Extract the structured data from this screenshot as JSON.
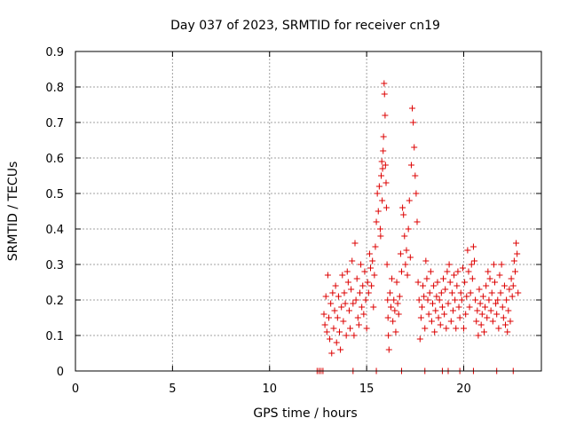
{
  "chart_data": {
    "type": "scatter",
    "title": "Day 037 of 2023, SRMTID for receiver cn19",
    "xlabel": "GPS time / hours",
    "ylabel": "SRMTID / TECUs",
    "xlim": [
      0,
      24
    ],
    "ylim": [
      0,
      0.9
    ],
    "grid": true,
    "x_ticks": [
      0,
      5,
      10,
      15,
      20
    ],
    "x_tick_labels": [
      "0",
      "5",
      "10",
      "15",
      "20"
    ],
    "y_ticks": [
      0,
      0.1,
      0.2,
      0.3,
      0.4,
      0.5,
      0.6,
      0.7,
      0.8,
      0.9
    ],
    "y_tick_labels": [
      "0",
      "0.1",
      "0.2",
      "0.3",
      "0.4",
      "0.5",
      "0.6",
      "0.7",
      "0.8",
      "0.9"
    ],
    "marker": "+",
    "color": "#dd0000",
    "series": [
      {
        "name": "SRMTID",
        "points": [
          [
            12.45,
            0
          ],
          [
            12.55,
            0
          ],
          [
            12.65,
            0
          ],
          [
            12.75,
            0
          ],
          [
            14.3,
            0
          ],
          [
            15.5,
            0
          ],
          [
            16.8,
            0
          ],
          [
            18.0,
            0
          ],
          [
            18.9,
            0
          ],
          [
            19.2,
            0
          ],
          [
            19.8,
            0
          ],
          [
            20.5,
            0
          ],
          [
            21.7,
            0
          ],
          [
            22.55,
            0
          ],
          [
            12.8,
            0.16
          ],
          [
            12.85,
            0.13
          ],
          [
            12.9,
            0.21
          ],
          [
            12.95,
            0.11
          ],
          [
            13.0,
            0.27
          ],
          [
            13.05,
            0.15
          ],
          [
            13.1,
            0.09
          ],
          [
            13.15,
            0.19
          ],
          [
            13.2,
            0.05
          ],
          [
            13.25,
            0.22
          ],
          [
            13.3,
            0.12
          ],
          [
            13.35,
            0.17
          ],
          [
            13.4,
            0.24
          ],
          [
            13.45,
            0.08
          ],
          [
            13.5,
            0.15
          ],
          [
            13.55,
            0.21
          ],
          [
            13.6,
            0.11
          ],
          [
            13.65,
            0.06
          ],
          [
            13.7,
            0.18
          ],
          [
            13.75,
            0.27
          ],
          [
            13.8,
            0.14
          ],
          [
            13.85,
            0.22
          ],
          [
            13.9,
            0.19
          ],
          [
            13.95,
            0.1
          ],
          [
            14.0,
            0.28
          ],
          [
            14.05,
            0.25
          ],
          [
            14.1,
            0.17
          ],
          [
            14.15,
            0.12
          ],
          [
            14.2,
            0.23
          ],
          [
            14.25,
            0.31
          ],
          [
            14.3,
            0.19
          ],
          [
            14.35,
            0.1
          ],
          [
            14.4,
            0.36
          ],
          [
            14.45,
            0.2
          ],
          [
            14.5,
            0.26
          ],
          [
            14.55,
            0.15
          ],
          [
            14.6,
            0.13
          ],
          [
            14.65,
            0.22
          ],
          [
            14.7,
            0.3
          ],
          [
            14.75,
            0.18
          ],
          [
            14.8,
            0.24
          ],
          [
            14.85,
            0.16
          ],
          [
            14.9,
            0.28
          ],
          [
            14.95,
            0.2
          ],
          [
            15.0,
            0.12
          ],
          [
            15.05,
            0.25
          ],
          [
            15.1,
            0.22
          ],
          [
            15.15,
            0.33
          ],
          [
            15.2,
            0.29
          ],
          [
            15.25,
            0.24
          ],
          [
            15.3,
            0.31
          ],
          [
            15.35,
            0.18
          ],
          [
            15.4,
            0.27
          ],
          [
            15.45,
            0.35
          ],
          [
            15.5,
            0.42
          ],
          [
            15.55,
            0.5
          ],
          [
            15.6,
            0.45
          ],
          [
            15.65,
            0.52
          ],
          [
            15.7,
            0.4
          ],
          [
            15.72,
            0.38
          ],
          [
            15.75,
            0.55
          ],
          [
            15.78,
            0.59
          ],
          [
            15.8,
            0.48
          ],
          [
            15.82,
            0.57
          ],
          [
            15.85,
            0.62
          ],
          [
            15.87,
            0.66
          ],
          [
            15.9,
            0.81
          ],
          [
            15.92,
            0.78
          ],
          [
            15.95,
            0.72
          ],
          [
            15.97,
            0.58
          ],
          [
            16.0,
            0.53
          ],
          [
            16.02,
            0.46
          ],
          [
            16.05,
            0.3
          ],
          [
            16.08,
            0.2
          ],
          [
            16.1,
            0.15
          ],
          [
            16.12,
            0.1
          ],
          [
            16.15,
            0.06
          ],
          [
            16.2,
            0.22
          ],
          [
            16.25,
            0.18
          ],
          [
            16.3,
            0.26
          ],
          [
            16.35,
            0.14
          ],
          [
            16.4,
            0.2
          ],
          [
            16.45,
            0.17
          ],
          [
            16.5,
            0.11
          ],
          [
            16.55,
            0.25
          ],
          [
            16.6,
            0.19
          ],
          [
            16.65,
            0.16
          ],
          [
            16.7,
            0.21
          ],
          [
            16.75,
            0.33
          ],
          [
            16.8,
            0.28
          ],
          [
            16.85,
            0.46
          ],
          [
            16.9,
            0.44
          ],
          [
            16.95,
            0.38
          ],
          [
            17.0,
            0.3
          ],
          [
            17.05,
            0.34
          ],
          [
            17.1,
            0.27
          ],
          [
            17.15,
            0.4
          ],
          [
            17.2,
            0.48
          ],
          [
            17.25,
            0.32
          ],
          [
            17.3,
            0.58
          ],
          [
            17.35,
            0.74
          ],
          [
            17.4,
            0.7
          ],
          [
            17.45,
            0.63
          ],
          [
            17.5,
            0.55
          ],
          [
            17.55,
            0.5
          ],
          [
            17.6,
            0.42
          ],
          [
            17.65,
            0.25
          ],
          [
            17.7,
            0.2
          ],
          [
            17.75,
            0.09
          ],
          [
            17.8,
            0.15
          ],
          [
            17.85,
            0.18
          ],
          [
            17.9,
            0.24
          ],
          [
            17.95,
            0.21
          ],
          [
            18.0,
            0.12
          ],
          [
            18.05,
            0.31
          ],
          [
            18.1,
            0.26
          ],
          [
            18.15,
            0.2
          ],
          [
            18.2,
            0.16
          ],
          [
            18.25,
            0.22
          ],
          [
            18.3,
            0.28
          ],
          [
            18.35,
            0.14
          ],
          [
            18.4,
            0.19
          ],
          [
            18.45,
            0.24
          ],
          [
            18.5,
            0.11
          ],
          [
            18.55,
            0.17
          ],
          [
            18.6,
            0.21
          ],
          [
            18.65,
            0.25
          ],
          [
            18.7,
            0.15
          ],
          [
            18.75,
            0.2
          ],
          [
            18.8,
            0.13
          ],
          [
            18.85,
            0.22
          ],
          [
            18.9,
            0.18
          ],
          [
            18.95,
            0.26
          ],
          [
            19.0,
            0.16
          ],
          [
            19.05,
            0.23
          ],
          [
            19.1,
            0.12
          ],
          [
            19.15,
            0.28
          ],
          [
            19.2,
            0.19
          ],
          [
            19.25,
            0.3
          ],
          [
            19.3,
            0.25
          ],
          [
            19.35,
            0.14
          ],
          [
            19.4,
            0.22
          ],
          [
            19.45,
            0.17
          ],
          [
            19.5,
            0.27
          ],
          [
            19.55,
            0.2
          ],
          [
            19.6,
            0.12
          ],
          [
            19.65,
            0.24
          ],
          [
            19.7,
            0.28
          ],
          [
            19.75,
            0.18
          ],
          [
            19.8,
            0.15
          ],
          [
            19.85,
            0.22
          ],
          [
            19.9,
            0.2
          ],
          [
            19.95,
            0.29
          ],
          [
            20.0,
            0.12
          ],
          [
            20.05,
            0.25
          ],
          [
            20.1,
            0.16
          ],
          [
            20.15,
            0.21
          ],
          [
            20.2,
            0.34
          ],
          [
            20.25,
            0.28
          ],
          [
            20.3,
            0.18
          ],
          [
            20.35,
            0.22
          ],
          [
            20.4,
            0.3
          ],
          [
            20.45,
            0.26
          ],
          [
            20.5,
            0.35
          ],
          [
            20.55,
            0.31
          ],
          [
            20.6,
            0.2
          ],
          [
            20.65,
            0.14
          ],
          [
            20.7,
            0.17
          ],
          [
            20.75,
            0.1
          ],
          [
            20.8,
            0.23
          ],
          [
            20.85,
            0.19
          ],
          [
            20.9,
            0.13
          ],
          [
            20.95,
            0.16
          ],
          [
            21.0,
            0.21
          ],
          [
            21.05,
            0.11
          ],
          [
            21.1,
            0.18
          ],
          [
            21.15,
            0.24
          ],
          [
            21.2,
            0.15
          ],
          [
            21.25,
            0.28
          ],
          [
            21.3,
            0.2
          ],
          [
            21.35,
            0.26
          ],
          [
            21.4,
            0.17
          ],
          [
            21.45,
            0.22
          ],
          [
            21.5,
            0.14
          ],
          [
            21.55,
            0.3
          ],
          [
            21.6,
            0.25
          ],
          [
            21.65,
            0.19
          ],
          [
            21.7,
            0.16
          ],
          [
            21.75,
            0.2
          ],
          [
            21.8,
            0.12
          ],
          [
            21.85,
            0.27
          ],
          [
            21.9,
            0.22
          ],
          [
            21.95,
            0.3
          ],
          [
            22.0,
            0.18
          ],
          [
            22.05,
            0.15
          ],
          [
            22.1,
            0.24
          ],
          [
            22.15,
            0.13
          ],
          [
            22.2,
            0.2
          ],
          [
            22.25,
            0.11
          ],
          [
            22.3,
            0.17
          ],
          [
            22.35,
            0.23
          ],
          [
            22.4,
            0.14
          ],
          [
            22.45,
            0.26
          ],
          [
            22.5,
            0.21
          ],
          [
            22.55,
            0.24
          ],
          [
            22.6,
            0.31
          ],
          [
            22.65,
            0.28
          ],
          [
            22.7,
            0.36
          ],
          [
            22.75,
            0.33
          ],
          [
            22.8,
            0.22
          ]
        ]
      }
    ]
  }
}
